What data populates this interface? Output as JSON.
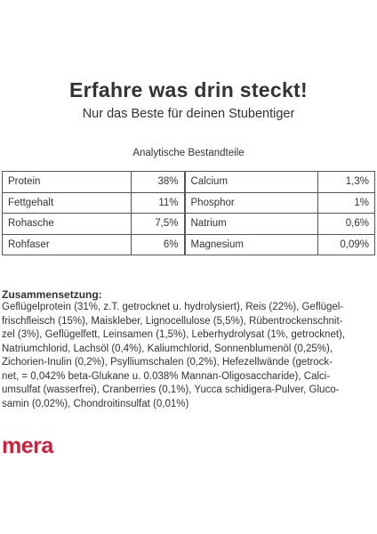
{
  "headline": "Erfahre was drin steckt!",
  "subheadline": "Nur das Beste für deinen Stubentiger",
  "analysis": {
    "title": "Analytische Bestandteile",
    "rows": [
      {
        "left_label": "Protein",
        "left_value": "38%",
        "right_label": "Calcium",
        "right_value": "1,3%"
      },
      {
        "left_label": "Fettgehalt",
        "left_value": "11%",
        "right_label": "Phosphor",
        "right_value": "1%"
      },
      {
        "left_label": "Rohasche",
        "left_value": "7,5%",
        "right_label": "Natrium",
        "right_value": "0,6%"
      },
      {
        "left_label": "Rohfaser",
        "left_value": "6%",
        "right_label": "Magnesium",
        "right_value": "0,09%"
      }
    ]
  },
  "composition": {
    "title": "Zusammensetzung:",
    "lines": [
      "Geflügelprotein (31%, z.T. getrocknet u. hydrolysiert), Reis (22%), Geflügel-",
      "frischfleisch (15%), Maiskleber, Lignocellulose (5,5%), Rübentrockenschnit-",
      "zel (3%), Geflügelfett, Leinsamen (1,5%), Leberhydrolysat (1%, getrocknet),",
      "Natriumchlorid, Lachsöl (0,4%), Kaliumchlorid, Sonnenblumenöl (0,25%),",
      "Zichorien-Inulin (0,2%), Psylliumschalen (0,2%), Hefezellwände (getrock-",
      "net, = 0,042% beta-Glukane u. 0.038% Mannan-Oligosaccharide), Calci-",
      "umsulfat (wasserfrei), Cranberries (0,1%), Yucca schidigera-Pulver, Gluco-",
      "samin (0,02%), Chondroitinsulfat (0,01%)"
    ]
  },
  "brand": {
    "name": "mera",
    "color": "#d21f3c"
  }
}
